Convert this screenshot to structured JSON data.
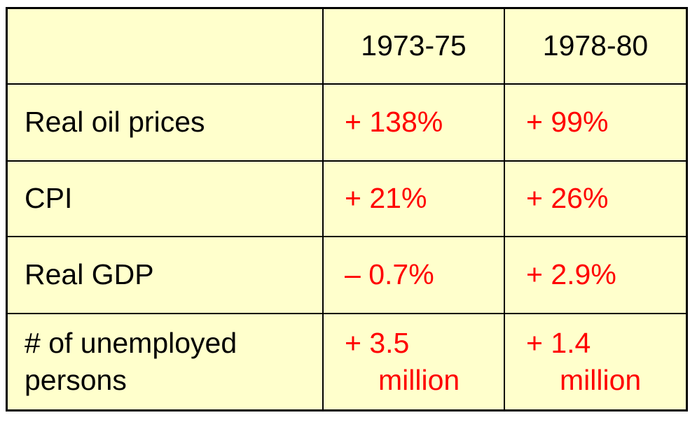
{
  "table": {
    "columns": [
      "",
      "1973-75",
      "1978-80"
    ],
    "rows": [
      {
        "label": "Real oil prices",
        "values": [
          "+ 138%",
          "+ 99%"
        ]
      },
      {
        "label": "CPI",
        "values": [
          "+ 21%",
          "+ 26%"
        ]
      },
      {
        "label": "Real GDP",
        "values": [
          "– 0.7%",
          "+ 2.9%"
        ]
      },
      {
        "label_lines": [
          "# of unemployed",
          "persons"
        ],
        "values_lines": [
          [
            "+ 3.5",
            "million"
          ],
          [
            "+ 1.4",
            "million"
          ]
        ]
      }
    ]
  },
  "colors": {
    "background": "#ffffcc",
    "value_text": "#ff0000",
    "label_text": "#000000",
    "border": "#000000"
  }
}
